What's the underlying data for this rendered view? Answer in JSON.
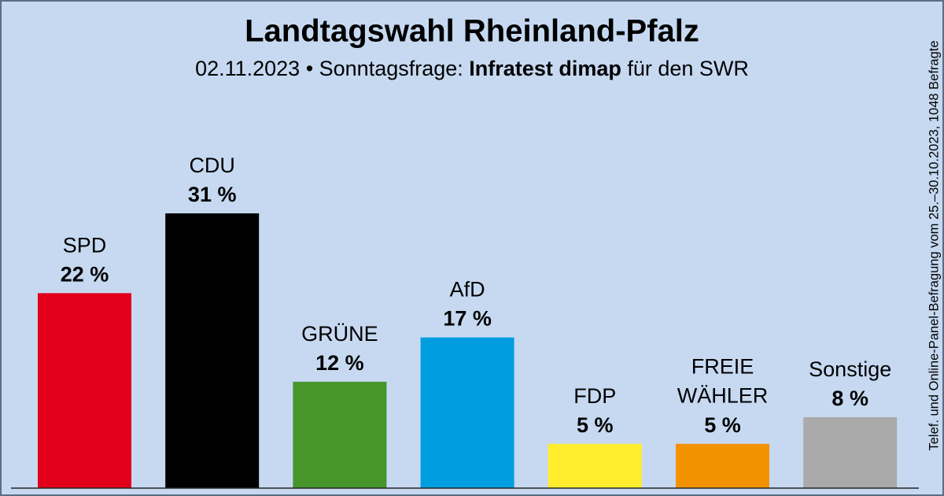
{
  "chart_data": {
    "type": "bar",
    "title": "Landtagswahl Rheinland-Pfalz",
    "subtitle": "02.11.2023 • Sonntagsfrage:",
    "source": "Infratest dimap",
    "client": "für den SWR",
    "note": "Telef. und Online-Panel-Befragung vom 25.–30.10.2023, 1048 Befragte",
    "categories": [
      "SPD",
      "CDU",
      "GRÜNE",
      "AfD",
      "FDP",
      "FREIE WÄHLER",
      "Sonstige"
    ],
    "values": [
      22,
      31,
      12,
      17,
      5,
      5,
      8
    ],
    "value_labels": [
      "22 %",
      "31 %",
      "12 %",
      "17 %",
      "5 %",
      "5 %",
      "8 %"
    ],
    "colors": [
      "#e3001b",
      "#000000",
      "#46962b",
      "#009ee0",
      "#ffed2e",
      "#f39200",
      "#aaaaaa"
    ],
    "ylim": [
      0,
      31
    ]
  }
}
